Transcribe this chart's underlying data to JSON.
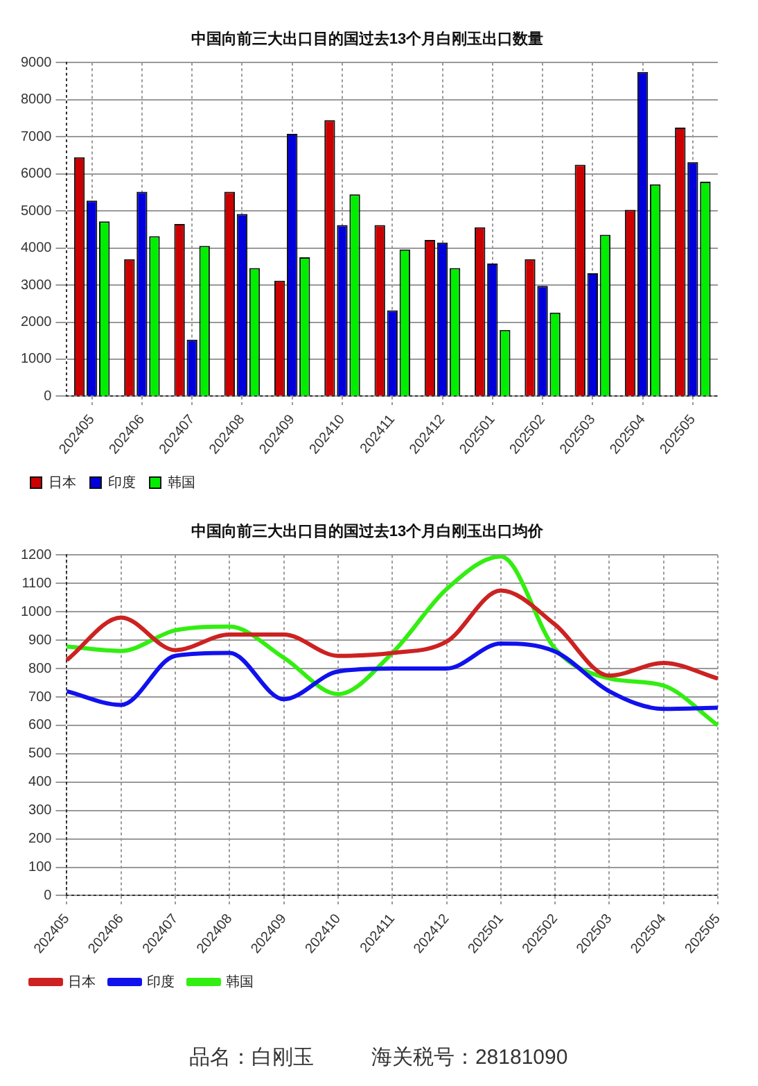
{
  "chart_data": [
    {
      "type": "bar",
      "title": "中国向前三大出口目的国过去13个月白刚玉出口数量",
      "categories": [
        "202405",
        "202406",
        "202407",
        "202408",
        "202409",
        "202410",
        "202411",
        "202412",
        "202501",
        "202502",
        "202503",
        "202504",
        "202505"
      ],
      "ylim": [
        0,
        9000
      ],
      "yticks": [
        0,
        1000,
        2000,
        3000,
        4000,
        5000,
        6000,
        7000,
        8000,
        9000
      ],
      "grid": true,
      "legend": "bottom left",
      "series": [
        {
          "name": "日本",
          "color": "#cc0000",
          "values": [
            6450,
            3700,
            4650,
            5520,
            3120,
            7450,
            4620,
            4220,
            4560,
            3700,
            6250,
            5030,
            7250
          ]
        },
        {
          "name": "印度",
          "color": "#0000dd",
          "values": [
            5280,
            5520,
            1530,
            4920,
            7080,
            4620,
            2320,
            4150,
            3580,
            2980,
            3320,
            8750,
            6320
          ]
        },
        {
          "name": "韩国",
          "color": "#00ee00",
          "values": [
            4720,
            4320,
            4060,
            3460,
            3750,
            5450,
            3960,
            3460,
            1790,
            2260,
            4360,
            5720,
            5790
          ]
        }
      ]
    },
    {
      "type": "line",
      "title": "中国向前三大出口目的国过去13个月白刚玉出口均价",
      "categories": [
        "202405",
        "202406",
        "202407",
        "202408",
        "202409",
        "202410",
        "202411",
        "202412",
        "202501",
        "202502",
        "202503",
        "202504",
        "202505"
      ],
      "ylim": [
        0,
        1200
      ],
      "yticks": [
        0,
        100,
        200,
        300,
        400,
        500,
        600,
        700,
        800,
        900,
        1000,
        1100,
        1200
      ],
      "grid": true,
      "legend": "bottom left",
      "marker": "none",
      "annotations": [
        "品名：白刚玉          海关税号：28181090"
      ],
      "series": [
        {
          "name": "日本",
          "color": "#cc2222",
          "values": [
            830,
            980,
            865,
            920,
            920,
            845,
            855,
            895,
            1075,
            955,
            775,
            820,
            765
          ]
        },
        {
          "name": "印度",
          "color": "#1111ee",
          "values": [
            720,
            672,
            845,
            855,
            692,
            790,
            800,
            800,
            888,
            860,
            720,
            658,
            662
          ]
        },
        {
          "name": "韩国",
          "color": "#33ee11",
          "values": [
            878,
            862,
            935,
            948,
            838,
            710,
            855,
            1080,
            1195,
            870,
            765,
            740,
            600
          ]
        }
      ]
    }
  ]
}
